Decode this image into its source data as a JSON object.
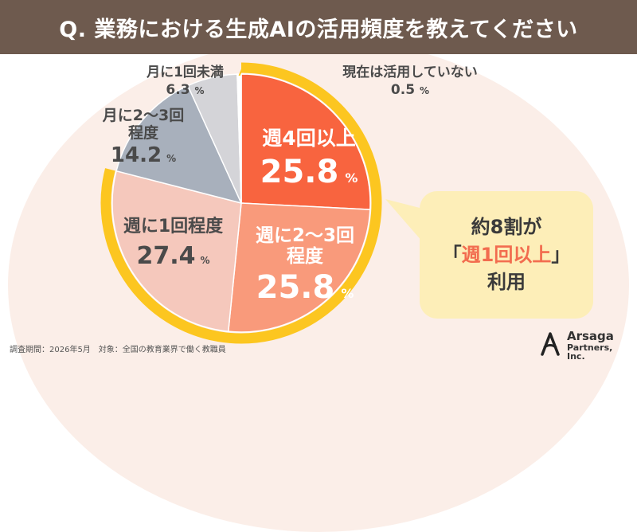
{
  "title": "Q. 業務における生成AIの活用頻度を教えてください",
  "chart_data": {
    "type": "pie",
    "unit": "%",
    "slices": [
      {
        "label": "週4回以上",
        "value": 25.8,
        "color": "#f8643f"
      },
      {
        "label": "週に2～3回程度",
        "value": 25.8,
        "color": "#f99a7b"
      },
      {
        "label": "週に1回程度",
        "value": 27.4,
        "color": "#f5c8bc"
      },
      {
        "label": "月に2～3回程度",
        "value": 14.2,
        "color": "#a8b0bc"
      },
      {
        "label": "月に1回未満",
        "value": 6.3,
        "color": "#d4d4d8"
      },
      {
        "label": "現在は活用していない",
        "value": 0.5,
        "color": "#ffffff"
      }
    ],
    "highlight_color": "#fcc620"
  },
  "labels": {
    "s0": {
      "line1": "週4回以上",
      "value": "25.8",
      "unit": "%"
    },
    "s1": {
      "line1": "週に2～3回",
      "line2": "程度",
      "value": "25.8",
      "unit": "%"
    },
    "s2": {
      "line1": "週に1回程度",
      "value": "27.4",
      "unit": "%"
    },
    "s3": {
      "line1": "月に2～3回",
      "line2": "程度",
      "value": "14.2",
      "unit": "%"
    },
    "s4": {
      "line1": "月に1回未満",
      "value": "6.3",
      "unit": "%"
    },
    "s5": {
      "line1": "現在は活用していない",
      "value": "0.5",
      "unit": "%"
    }
  },
  "callout": {
    "line1": "約8割が",
    "bracket_open": "「",
    "highlight": "週1回以上",
    "bracket_close": "」",
    "line3": "利用"
  },
  "footnote": "調査期間：2026年5月　対象：全国の教育業界で働く教職員",
  "logo": {
    "name": "Arsaga",
    "sub": "Partners, Inc."
  }
}
